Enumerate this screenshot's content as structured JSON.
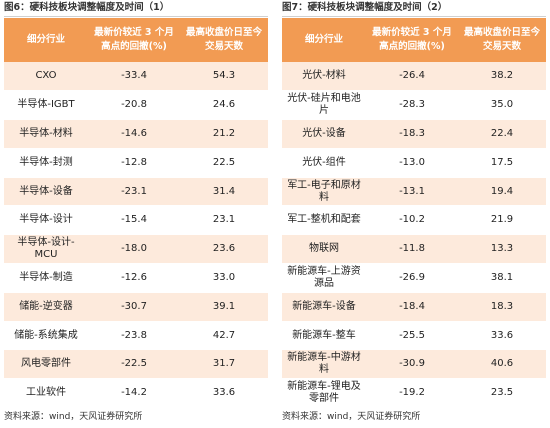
{
  "left": {
    "caption": "图6：硬科技板块调整幅度及时间（1）",
    "headers": [
      "细分行业",
      "最新价较近 3 个月高点的回撤(%)",
      "最高收盘价日至今交易天数"
    ],
    "rows": [
      {
        "industry": "CXO",
        "drawdown": "-33.4",
        "days": "54.3"
      },
      {
        "industry": "半导体-IGBT",
        "drawdown": "-20.8",
        "days": "24.6"
      },
      {
        "industry": "半导体-材料",
        "drawdown": "-14.6",
        "days": "21.2"
      },
      {
        "industry": "半导体-封测",
        "drawdown": "-12.8",
        "days": "22.5"
      },
      {
        "industry": "半导体-设备",
        "drawdown": "-23.1",
        "days": "31.4"
      },
      {
        "industry": "半导体-设计",
        "drawdown": "-15.4",
        "days": "23.1"
      },
      {
        "industry": "半导体-设计-MCU",
        "drawdown": "-18.0",
        "days": "23.6"
      },
      {
        "industry": "半导体-制造",
        "drawdown": "-12.6",
        "days": "33.0"
      },
      {
        "industry": "储能-逆变器",
        "drawdown": "-30.7",
        "days": "39.1"
      },
      {
        "industry": "储能-系统集成",
        "drawdown": "-23.8",
        "days": "42.7"
      },
      {
        "industry": "风电零部件",
        "drawdown": "-22.5",
        "days": "31.7"
      },
      {
        "industry": "工业软件",
        "drawdown": "-14.2",
        "days": "33.6"
      }
    ],
    "source": "资料来源：wind，天风证券研究所"
  },
  "right": {
    "caption": "图7：硬科技板块调整幅度及时间（2）",
    "headers": [
      "细分行业",
      "最新价较近 3 个月高点的回撤(%)",
      "最高收盘价日至今交易天数"
    ],
    "rows": [
      {
        "industry": "光伏-材料",
        "drawdown": "-26.4",
        "days": "38.2"
      },
      {
        "industry": "光伏-硅片和电池片",
        "drawdown": "-28.3",
        "days": "35.0"
      },
      {
        "industry": "光伏-设备",
        "drawdown": "-18.3",
        "days": "22.4"
      },
      {
        "industry": "光伏-组件",
        "drawdown": "-13.0",
        "days": "17.5"
      },
      {
        "industry": "军工-电子和原材料",
        "drawdown": "-13.1",
        "days": "19.4"
      },
      {
        "industry": "军工-整机和配套",
        "drawdown": "-10.2",
        "days": "21.9"
      },
      {
        "industry": "物联网",
        "drawdown": "-11.8",
        "days": "13.3"
      },
      {
        "industry": "新能源车-上游资源品",
        "drawdown": "-26.9",
        "days": "38.1"
      },
      {
        "industry": "新能源车-设备",
        "drawdown": "-18.4",
        "days": "18.3"
      },
      {
        "industry": "新能源车-整车",
        "drawdown": "-25.5",
        "days": "33.6"
      },
      {
        "industry": "新能源车-中游材料",
        "drawdown": "-30.9",
        "days": "40.6"
      },
      {
        "industry": "新能源车-锂电及零部件",
        "drawdown": "-19.2",
        "days": "23.5"
      }
    ],
    "source": "资料来源：wind，天风证券研究所"
  },
  "colors": {
    "header_bg": "#f29b53",
    "row_odd_bg": "#fdeadc",
    "row_even_bg": "#ffffff"
  }
}
